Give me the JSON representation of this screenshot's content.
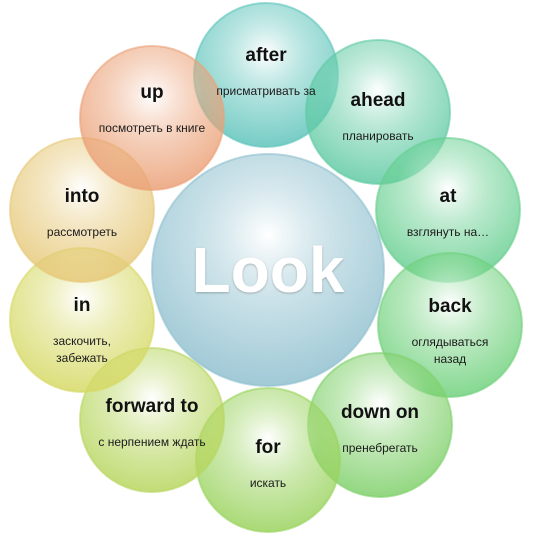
{
  "center": {
    "word": "Look",
    "color": "#8fc0cf"
  },
  "items": [
    {
      "word": "after",
      "meaning": "присматривать за",
      "color": "#5ec4bb"
    },
    {
      "word": "ahead",
      "meaning": "планировать",
      "color": "#5fcaa3"
    },
    {
      "word": "at",
      "meaning": "взглянуть на…",
      "color": "#66cf90"
    },
    {
      "word": "back",
      "meaning": "оглядываться назад",
      "color": "#6fd17c"
    },
    {
      "word": "down on",
      "meaning": "пренебрегать",
      "color": "#7fd06a"
    },
    {
      "word": "for",
      "meaning": "искать",
      "color": "#9ad35e"
    },
    {
      "word": "forward to",
      "meaning": "с нерпением ждать",
      "color": "#b7d65e"
    },
    {
      "word": "in",
      "meaning": "заскочить, забежать",
      "color": "#d6d964"
    },
    {
      "word": "into",
      "meaning": "рассмотреть",
      "color": "#e6c878"
    },
    {
      "word": "up",
      "meaning": "посмотреть в книге",
      "color": "#eba076"
    }
  ]
}
